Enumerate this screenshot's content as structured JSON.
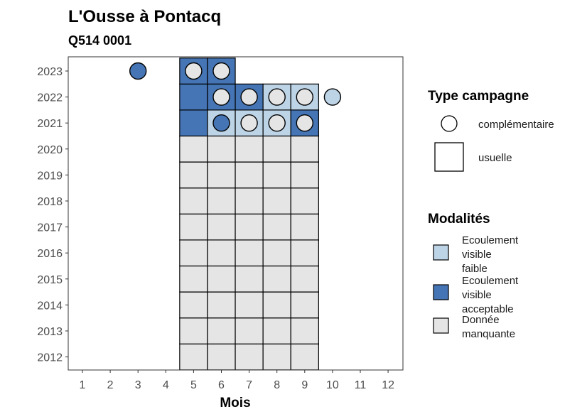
{
  "chart_data": {
    "type": "heatmap",
    "title": "L'Ousse à Pontacq",
    "subtitle": "Q514 0001",
    "xlabel": "Mois",
    "ylabel": "",
    "x_categories": [
      "1",
      "2",
      "3",
      "4",
      "5",
      "6",
      "7",
      "8",
      "9",
      "10",
      "11",
      "12"
    ],
    "y_categories": [
      "2012",
      "2013",
      "2014",
      "2015",
      "2016",
      "2017",
      "2018",
      "2019",
      "2020",
      "2021",
      "2022",
      "2023"
    ],
    "colors": {
      "faible": "#bdd4e7",
      "acceptable": "#4575b4",
      "manquante": "#e5e5e5",
      "border": "#000000",
      "panel_border": "#333333"
    },
    "cells": [
      {
        "year": "2012",
        "month": 5,
        "modalite": "manquante"
      },
      {
        "year": "2012",
        "month": 6,
        "modalite": "manquante"
      },
      {
        "year": "2012",
        "month": 7,
        "modalite": "manquante"
      },
      {
        "year": "2012",
        "month": 8,
        "modalite": "manquante"
      },
      {
        "year": "2012",
        "month": 9,
        "modalite": "manquante"
      },
      {
        "year": "2013",
        "month": 5,
        "modalite": "manquante"
      },
      {
        "year": "2013",
        "month": 6,
        "modalite": "manquante"
      },
      {
        "year": "2013",
        "month": 7,
        "modalite": "manquante"
      },
      {
        "year": "2013",
        "month": 8,
        "modalite": "manquante"
      },
      {
        "year": "2013",
        "month": 9,
        "modalite": "manquante"
      },
      {
        "year": "2014",
        "month": 5,
        "modalite": "manquante"
      },
      {
        "year": "2014",
        "month": 6,
        "modalite": "manquante"
      },
      {
        "year": "2014",
        "month": 7,
        "modalite": "manquante"
      },
      {
        "year": "2014",
        "month": 8,
        "modalite": "manquante"
      },
      {
        "year": "2014",
        "month": 9,
        "modalite": "manquante"
      },
      {
        "year": "2015",
        "month": 5,
        "modalite": "manquante"
      },
      {
        "year": "2015",
        "month": 6,
        "modalite": "manquante"
      },
      {
        "year": "2015",
        "month": 7,
        "modalite": "manquante"
      },
      {
        "year": "2015",
        "month": 8,
        "modalite": "manquante"
      },
      {
        "year": "2015",
        "month": 9,
        "modalite": "manquante"
      },
      {
        "year": "2016",
        "month": 5,
        "modalite": "manquante"
      },
      {
        "year": "2016",
        "month": 6,
        "modalite": "manquante"
      },
      {
        "year": "2016",
        "month": 7,
        "modalite": "manquante"
      },
      {
        "year": "2016",
        "month": 8,
        "modalite": "manquante"
      },
      {
        "year": "2016",
        "month": 9,
        "modalite": "manquante"
      },
      {
        "year": "2017",
        "month": 5,
        "modalite": "manquante"
      },
      {
        "year": "2017",
        "month": 6,
        "modalite": "manquante"
      },
      {
        "year": "2017",
        "month": 7,
        "modalite": "manquante"
      },
      {
        "year": "2017",
        "month": 8,
        "modalite": "manquante"
      },
      {
        "year": "2017",
        "month": 9,
        "modalite": "manquante"
      },
      {
        "year": "2018",
        "month": 5,
        "modalite": "manquante"
      },
      {
        "year": "2018",
        "month": 6,
        "modalite": "manquante"
      },
      {
        "year": "2018",
        "month": 7,
        "modalite": "manquante"
      },
      {
        "year": "2018",
        "month": 8,
        "modalite": "manquante"
      },
      {
        "year": "2018",
        "month": 9,
        "modalite": "manquante"
      },
      {
        "year": "2019",
        "month": 5,
        "modalite": "manquante"
      },
      {
        "year": "2019",
        "month": 6,
        "modalite": "manquante"
      },
      {
        "year": "2019",
        "month": 7,
        "modalite": "manquante"
      },
      {
        "year": "2019",
        "month": 8,
        "modalite": "manquante"
      },
      {
        "year": "2019",
        "month": 9,
        "modalite": "manquante"
      },
      {
        "year": "2020",
        "month": 5,
        "modalite": "manquante"
      },
      {
        "year": "2020",
        "month": 6,
        "modalite": "manquante"
      },
      {
        "year": "2020",
        "month": 7,
        "modalite": "manquante"
      },
      {
        "year": "2020",
        "month": 8,
        "modalite": "manquante"
      },
      {
        "year": "2020",
        "month": 9,
        "modalite": "manquante"
      },
      {
        "year": "2021",
        "month": 5,
        "modalite": "acceptable"
      },
      {
        "year": "2021",
        "month": 6,
        "modalite": "faible"
      },
      {
        "year": "2021",
        "month": 7,
        "modalite": "faible"
      },
      {
        "year": "2021",
        "month": 8,
        "modalite": "faible"
      },
      {
        "year": "2021",
        "month": 9,
        "modalite": "acceptable"
      },
      {
        "year": "2022",
        "month": 5,
        "modalite": "acceptable"
      },
      {
        "year": "2022",
        "month": 6,
        "modalite": "acceptable"
      },
      {
        "year": "2022",
        "month": 7,
        "modalite": "acceptable"
      },
      {
        "year": "2022",
        "month": 8,
        "modalite": "faible"
      },
      {
        "year": "2022",
        "month": 9,
        "modalite": "faible"
      },
      {
        "year": "2023",
        "month": 5,
        "modalite": "acceptable"
      },
      {
        "year": "2023",
        "month": 6,
        "modalite": "acceptable"
      }
    ],
    "points": [
      {
        "year": "2023",
        "month": 3,
        "modalite": "acceptable"
      },
      {
        "year": "2023",
        "month": 5,
        "modalite": "manquante"
      },
      {
        "year": "2023",
        "month": 6,
        "modalite": "manquante"
      },
      {
        "year": "2022",
        "month": 6,
        "modalite": "manquante"
      },
      {
        "year": "2022",
        "month": 7,
        "modalite": "manquante"
      },
      {
        "year": "2022",
        "month": 8,
        "modalite": "manquante"
      },
      {
        "year": "2022",
        "month": 9,
        "modalite": "manquante"
      },
      {
        "year": "2022",
        "month": 10,
        "modalite": "faible"
      },
      {
        "year": "2021",
        "month": 6,
        "modalite": "acceptable"
      },
      {
        "year": "2021",
        "month": 7,
        "modalite": "manquante"
      },
      {
        "year": "2021",
        "month": 8,
        "modalite": "manquante"
      },
      {
        "year": "2021",
        "month": 9,
        "modalite": "manquante"
      }
    ],
    "legend_type": {
      "title": "Type campagne",
      "items": [
        {
          "shape": "circle",
          "label": "complémentaire"
        },
        {
          "shape": "square",
          "label": "usuelle"
        }
      ]
    },
    "legend_modalites": {
      "title": "Modalités",
      "items": [
        {
          "key": "faible",
          "label_lines": [
            "Ecoulement",
            "visible",
            "faible"
          ]
        },
        {
          "key": "acceptable",
          "label_lines": [
            "Ecoulement",
            "visible",
            "acceptable"
          ]
        },
        {
          "key": "manquante",
          "label_lines": [
            "Donnée",
            "manquante"
          ]
        }
      ]
    }
  }
}
